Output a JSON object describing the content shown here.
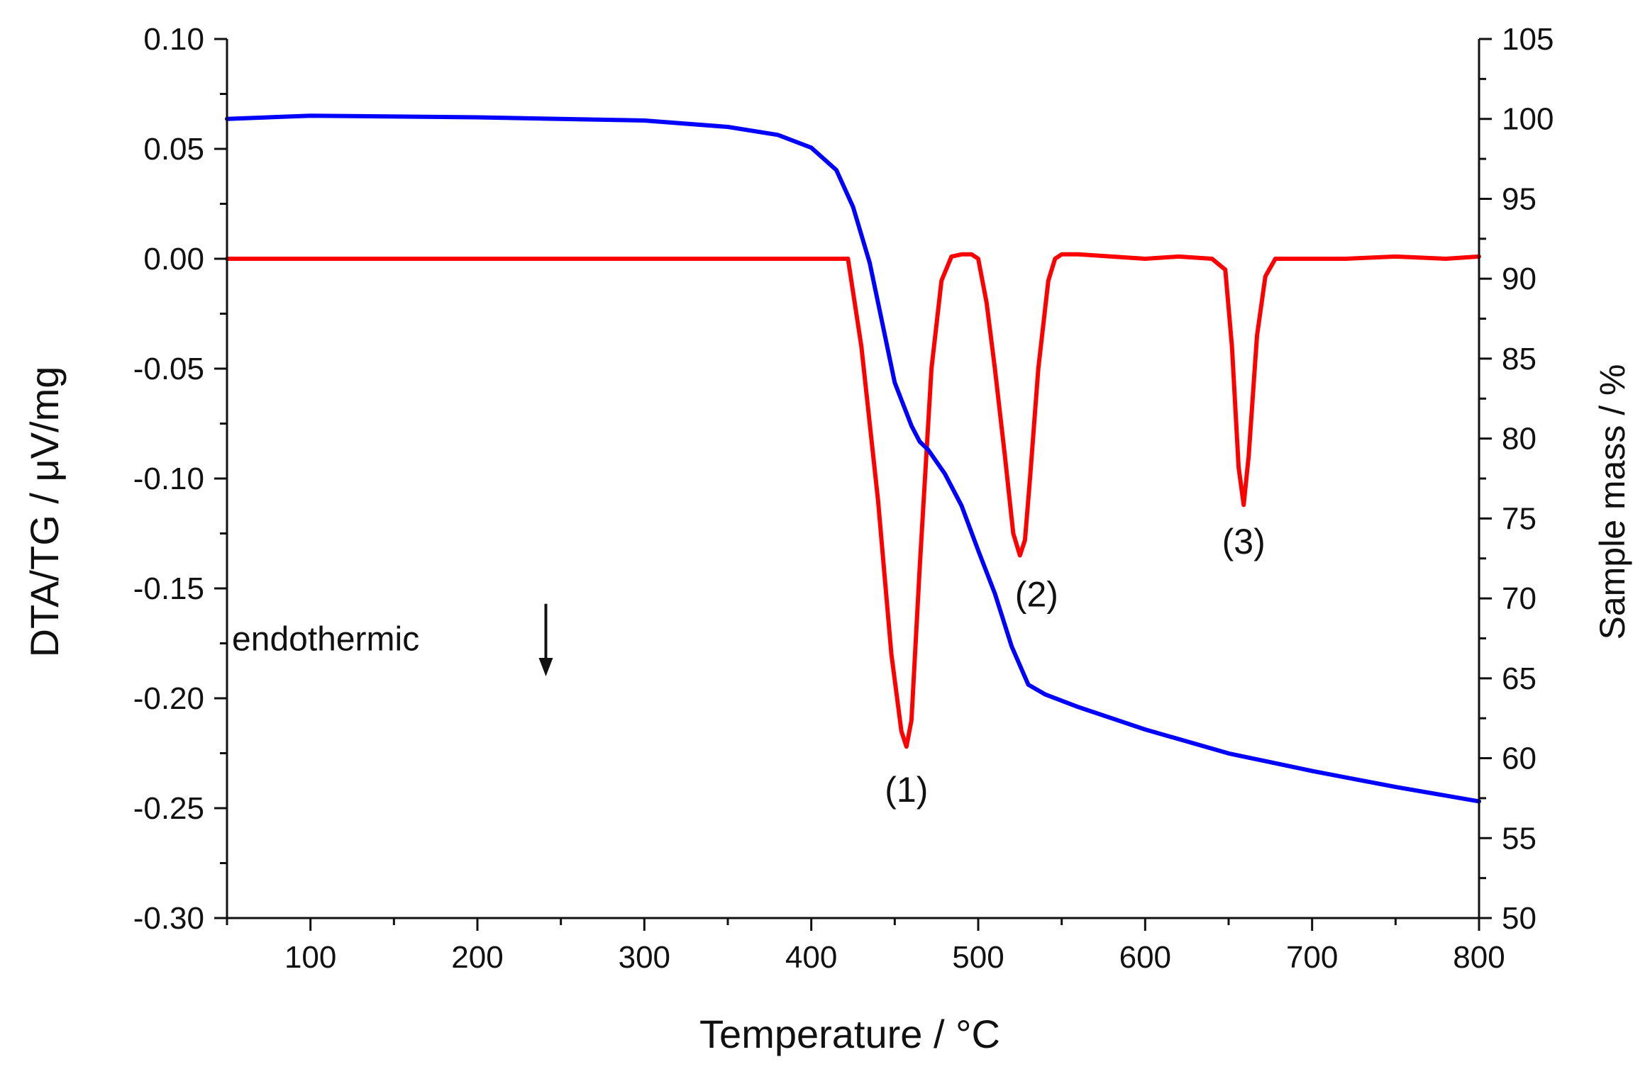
{
  "chart_data": {
    "type": "line",
    "title": "",
    "xlabel": "Temperature / °C",
    "ylabel_left": "DTA/TG / μV/mg",
    "ylabel_right": "Sample mass / %",
    "xlim": [
      50,
      800
    ],
    "ylim_left": [
      -0.3,
      0.1
    ],
    "ylim_right": [
      50,
      105
    ],
    "x_ticks": [
      100,
      200,
      300,
      400,
      500,
      600,
      700,
      800
    ],
    "x_tick_labels": [
      "100",
      "200",
      "300",
      "400",
      "500",
      "600",
      "700",
      "800"
    ],
    "y_left_ticks": [
      0.1,
      0.05,
      0.0,
      -0.05,
      -0.1,
      -0.15,
      -0.2,
      -0.25,
      -0.3
    ],
    "y_left_tick_labels": [
      "0.10",
      "0.05",
      "0.00",
      "-0.05",
      "-0.10",
      "-0.15",
      "-0.20",
      "-0.25",
      "-0.30"
    ],
    "y_right_ticks": [
      105,
      100,
      95,
      90,
      85,
      80,
      75,
      70,
      65,
      60,
      55,
      50
    ],
    "y_right_tick_labels": [
      "105",
      "100",
      "95",
      "90",
      "85",
      "80",
      "75",
      "70",
      "65",
      "60",
      "55",
      "50"
    ],
    "grid": false,
    "series": [
      {
        "name": "DTA",
        "axis": "left",
        "color": "#ff0000",
        "x": [
          50,
          100,
          200,
          300,
          400,
          418,
          422,
          430,
          440,
          448,
          454,
          457,
          460,
          465,
          472,
          478,
          484,
          490,
          496,
          500,
          505,
          510,
          516,
          521,
          525,
          528,
          531,
          536,
          542,
          546,
          550,
          560,
          580,
          600,
          620,
          640,
          648,
          652,
          656,
          659,
          662,
          667,
          672,
          678,
          690,
          720,
          750,
          780,
          800
        ],
        "y": [
          0,
          0,
          0,
          0,
          0,
          0,
          0,
          -0.04,
          -0.11,
          -0.18,
          -0.215,
          -0.222,
          -0.21,
          -0.14,
          -0.05,
          -0.01,
          0.001,
          0.002,
          0.002,
          0.0,
          -0.02,
          -0.05,
          -0.09,
          -0.125,
          -0.135,
          -0.128,
          -0.1,
          -0.05,
          -0.01,
          0.0,
          0.002,
          0.002,
          0.001,
          0.0,
          0.001,
          0.0,
          -0.005,
          -0.04,
          -0.095,
          -0.112,
          -0.09,
          -0.035,
          -0.008,
          0.0,
          0.0,
          0.0,
          0.001,
          0.0,
          0.001
        ]
      },
      {
        "name": "TG",
        "axis": "right",
        "color": "#0000ff",
        "x": [
          50,
          100,
          200,
          300,
          350,
          380,
          400,
          415,
          425,
          435,
          440,
          450,
          460,
          465,
          470,
          480,
          490,
          500,
          510,
          520,
          530,
          540,
          560,
          600,
          650,
          700,
          750,
          800
        ],
        "y": [
          100.0,
          100.2,
          100.1,
          99.9,
          99.5,
          99.0,
          98.2,
          96.8,
          94.5,
          91.0,
          88.5,
          83.5,
          80.8,
          79.8,
          79.3,
          77.8,
          75.8,
          73.0,
          70.3,
          67.0,
          64.6,
          64.0,
          63.2,
          61.8,
          60.3,
          59.2,
          58.2,
          57.3
        ]
      }
    ],
    "annotations": [
      {
        "text": "(1)",
        "x": 457,
        "y": -0.242
      },
      {
        "text": "(2)",
        "x": 535,
        "y": -0.153
      },
      {
        "text": "(3)",
        "x": 659,
        "y": -0.129
      },
      {
        "text": "endothermic",
        "x": 53,
        "y": -0.173
      }
    ],
    "arrow": {
      "x": 241,
      "y_from": -0.157,
      "y_to": -0.19
    }
  }
}
